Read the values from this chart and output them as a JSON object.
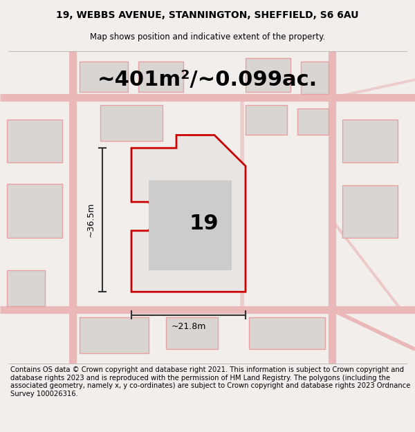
{
  "title_line1": "19, WEBBS AVENUE, STANNINGTON, SHEFFIELD, S6 6AU",
  "title_line2": "Map shows position and indicative extent of the property.",
  "area_text": "~401m²/~0.099ac.",
  "property_number": "19",
  "dim_width": "~21.8m",
  "dim_height": "~36.5m",
  "footer_text": "Contains OS data © Crown copyright and database right 2021. This information is subject to Crown copyright and database rights 2023 and is reproduced with the permission of HM Land Registry. The polygons (including the associated geometry, namely x, y co-ordinates) are subject to Crown copyright and database rights 2023 Ordnance Survey 100026316.",
  "bg_color": "#f2eeeb",
  "map_bg": "#f7f3f0",
  "title_fontsize": 10,
  "footer_fontsize": 7.5,
  "road_color": "#eab8b8",
  "road_lw": 4,
  "bld_fill": "#d8d5d2",
  "bld_edge": "#e8a0a0",
  "prop_fill": "#e8e5e2",
  "prop_edge": "#cc0000",
  "prop_edge_lw": 2.0,
  "dim_color": "#333333",
  "area_fontsize": 22,
  "num_fontsize": 22
}
